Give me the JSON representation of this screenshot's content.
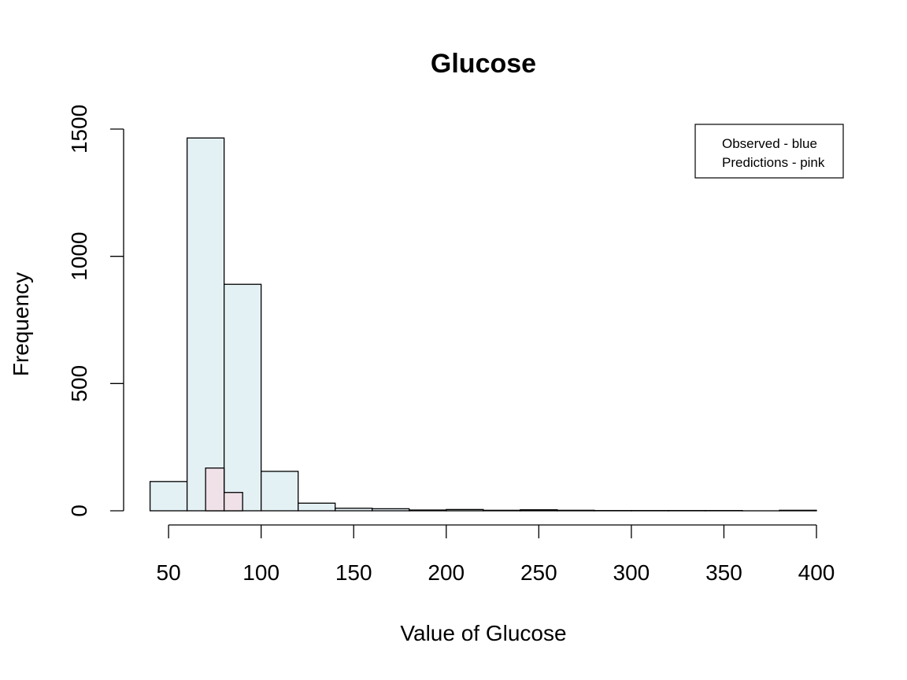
{
  "chart_data": {
    "type": "bar",
    "title": "Glucose",
    "xlabel": "Value of Glucose",
    "ylabel": "Frequency",
    "xlim": [
      40,
      400
    ],
    "ylim": [
      0,
      1500
    ],
    "x_ticks": [
      50,
      100,
      150,
      200,
      250,
      300,
      350,
      400
    ],
    "y_ticks": [
      0,
      500,
      1000,
      1500
    ],
    "colors": {
      "observed": "#e3f0f4",
      "predictions": "#efe1e7"
    },
    "series": [
      {
        "key": "observed",
        "bins": [
          {
            "start": 40,
            "end": 60,
            "value": 115
          },
          {
            "start": 60,
            "end": 80,
            "value": 1465
          },
          {
            "start": 80,
            "end": 100,
            "value": 890
          },
          {
            "start": 100,
            "end": 120,
            "value": 155
          },
          {
            "start": 120,
            "end": 140,
            "value": 30
          },
          {
            "start": 140,
            "end": 160,
            "value": 10
          },
          {
            "start": 160,
            "end": 180,
            "value": 8
          },
          {
            "start": 180,
            "end": 200,
            "value": 3
          },
          {
            "start": 200,
            "end": 220,
            "value": 5
          },
          {
            "start": 220,
            "end": 240,
            "value": 2
          },
          {
            "start": 240,
            "end": 260,
            "value": 4
          },
          {
            "start": 260,
            "end": 280,
            "value": 2
          },
          {
            "start": 280,
            "end": 300,
            "value": 1
          },
          {
            "start": 300,
            "end": 320,
            "value": 1
          },
          {
            "start": 320,
            "end": 340,
            "value": 1
          },
          {
            "start": 340,
            "end": 360,
            "value": 1
          },
          {
            "start": 360,
            "end": 380,
            "value": 0
          },
          {
            "start": 380,
            "end": 400,
            "value": 2
          }
        ]
      },
      {
        "key": "predictions",
        "bins": [
          {
            "start": 70,
            "end": 80,
            "value": 168
          },
          {
            "start": 80,
            "end": 90,
            "value": 72
          }
        ]
      }
    ],
    "legend": {
      "position": "top-right",
      "entries": [
        "Observed - blue",
        "Predictions - pink"
      ]
    },
    "grid": false
  }
}
